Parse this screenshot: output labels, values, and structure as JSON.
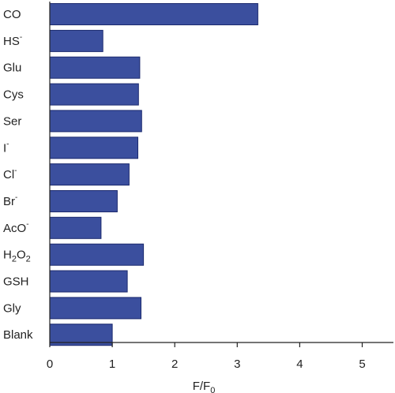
{
  "chart_data": {
    "type": "bar",
    "orientation": "horizontal",
    "categories": [
      {
        "label": "CO",
        "sup": "",
        "sub": ""
      },
      {
        "label": "HS",
        "sup": "-",
        "sub": ""
      },
      {
        "label": "Glu",
        "sup": "",
        "sub": ""
      },
      {
        "label": "Cys",
        "sup": "",
        "sub": ""
      },
      {
        "label": "Ser",
        "sup": "",
        "sub": ""
      },
      {
        "label": "I",
        "sup": "-",
        "sub": ""
      },
      {
        "label": "Cl",
        "sup": "-",
        "sub": ""
      },
      {
        "label": "Br",
        "sup": "-",
        "sub": ""
      },
      {
        "label": "AcO",
        "sup": "-",
        "sub": ""
      },
      {
        "label": "H2O2",
        "sup": "",
        "sub": "h2o2"
      },
      {
        "label": "GSH",
        "sup": "",
        "sub": ""
      },
      {
        "label": "Gly",
        "sup": "",
        "sub": ""
      },
      {
        "label": "Blank",
        "sup": "",
        "sub": ""
      }
    ],
    "values": [
      3.33,
      0.85,
      1.44,
      1.42,
      1.47,
      1.41,
      1.27,
      1.08,
      0.82,
      1.5,
      1.24,
      1.46,
      1.0
    ],
    "xlabel": {
      "main": "F/F",
      "sub": "0"
    },
    "xlim": [
      0,
      5.5
    ],
    "xticks": [
      0,
      1,
      2,
      3,
      4,
      5
    ],
    "grid": false,
    "colors": {
      "bar": "#3b4f9e",
      "bar_edge": "#1c2a6e",
      "axis": "#222222"
    }
  }
}
